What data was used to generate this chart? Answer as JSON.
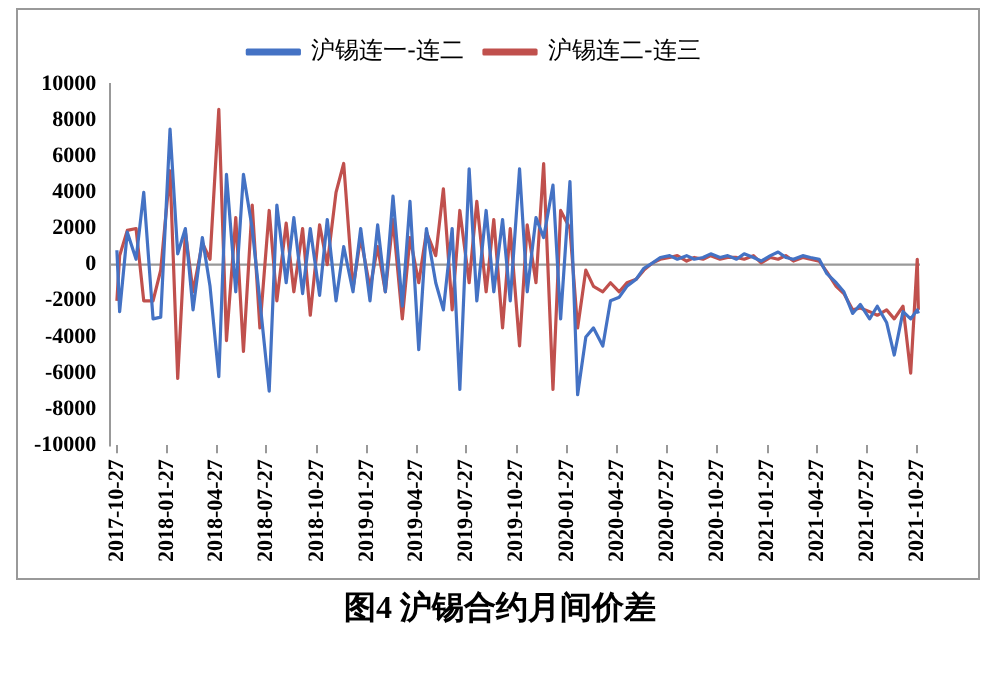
{
  "chart_data": {
    "type": "line",
    "title": "图4 沪锡合约月间价差",
    "x": [
      "2017-10-27",
      "2017-11-01",
      "2017-11-15",
      "2017-12-01",
      "2017-12-15",
      "2018-01-01",
      "2018-01-15",
      "2018-02-01",
      "2018-02-15",
      "2018-03-01",
      "2018-03-15",
      "2018-04-01",
      "2018-04-15",
      "2018-05-01",
      "2018-05-15",
      "2018-06-01",
      "2018-06-15",
      "2018-07-01",
      "2018-07-15",
      "2018-08-01",
      "2018-08-15",
      "2018-09-01",
      "2018-09-15",
      "2018-10-01",
      "2018-10-15",
      "2018-11-01",
      "2018-11-15",
      "2018-12-01",
      "2018-12-15",
      "2019-01-01",
      "2019-01-15",
      "2019-02-01",
      "2019-02-15",
      "2019-03-01",
      "2019-03-15",
      "2019-04-01",
      "2019-04-15",
      "2019-05-01",
      "2019-05-15",
      "2019-06-01",
      "2019-06-15",
      "2019-07-01",
      "2019-07-15",
      "2019-08-01",
      "2019-08-15",
      "2019-09-01",
      "2019-09-15",
      "2019-10-01",
      "2019-10-15",
      "2019-11-01",
      "2019-11-15",
      "2019-12-01",
      "2019-12-15",
      "2020-01-01",
      "2020-01-15",
      "2020-02-01",
      "2020-02-15",
      "2020-03-01",
      "2020-03-15",
      "2020-04-01",
      "2020-04-15",
      "2020-05-01",
      "2020-05-15",
      "2020-06-01",
      "2020-06-15",
      "2020-07-01",
      "2020-07-15",
      "2020-08-01",
      "2020-08-15",
      "2020-09-01",
      "2020-09-15",
      "2020-10-01",
      "2020-10-15",
      "2020-11-01",
      "2020-11-15",
      "2020-12-01",
      "2020-12-15",
      "2021-01-01",
      "2021-01-15",
      "2021-02-01",
      "2021-02-15",
      "2021-03-01",
      "2021-03-15",
      "2021-04-01",
      "2021-04-15",
      "2021-05-01",
      "2021-05-15",
      "2021-06-01",
      "2021-06-15",
      "2021-07-01",
      "2021-07-15",
      "2021-08-01",
      "2021-08-15",
      "2021-09-01",
      "2021-09-15",
      "2021-10-01",
      "2021-10-15",
      "2021-10-27",
      "2021-10-29"
    ],
    "series": [
      {
        "name": "沪锡连一-连二",
        "color": "#4472c4",
        "values": [
          800,
          -2600,
          1800,
          300,
          4000,
          -3000,
          -2900,
          7500,
          600,
          2000,
          -2500,
          1500,
          -1200,
          -6200,
          5000,
          -1500,
          5000,
          2000,
          -2000,
          -7000,
          3300,
          -1000,
          2600,
          -1600,
          2000,
          -1700,
          2500,
          -2000,
          1000,
          -1500,
          2000,
          -2000,
          2200,
          -1500,
          3800,
          -2300,
          3500,
          -4700,
          2000,
          -1000,
          -2500,
          2000,
          -6900,
          5300,
          -2000,
          3000,
          -1500,
          2500,
          -2000,
          5300,
          -1500,
          2600,
          1500,
          4400,
          -3000,
          4600,
          -7200,
          -4000,
          -3500,
          -4500,
          -2000,
          -1800,
          -1200,
          -800,
          -200,
          100,
          400,
          500,
          300,
          500,
          300,
          400,
          600,
          400,
          500,
          300,
          600,
          400,
          200,
          500,
          700,
          400,
          300,
          500,
          400,
          300,
          -500,
          -1000,
          -1500,
          -2700,
          -2200,
          -3000,
          -2300,
          -3200,
          -5000,
          -2600,
          -3000,
          -2500,
          -2700
        ]
      },
      {
        "name": "沪锡连二-连三",
        "color": "#c0504d",
        "values": [
          -2000,
          500,
          1900,
          2000,
          -2000,
          -2000,
          -300,
          5200,
          -6300,
          1800,
          -1500,
          1200,
          300,
          8600,
          -4200,
          2600,
          -4800,
          3300,
          -3500,
          3000,
          -2000,
          2300,
          -1500,
          2000,
          -2800,
          2200,
          0,
          4000,
          5600,
          -1300,
          1500,
          -1300,
          1000,
          -1500,
          2500,
          -3000,
          1500,
          -1000,
          1800,
          500,
          4200,
          -2500,
          3000,
          -1000,
          3500,
          -1500,
          2500,
          -3500,
          2000,
          -4500,
          2200,
          -1000,
          5600,
          -6900,
          3000,
          2000,
          -3500,
          -300,
          -1200,
          -1500,
          -1000,
          -1500,
          -1000,
          -800,
          -300,
          100,
          300,
          400,
          500,
          200,
          400,
          300,
          500,
          300,
          400,
          400,
          300,
          500,
          100,
          400,
          300,
          500,
          200,
          400,
          300,
          200,
          -400,
          -1200,
          -1600,
          -2500,
          -2400,
          -2600,
          -2800,
          -2500,
          -3000,
          -2300,
          -6000,
          300,
          -2500
        ]
      }
    ],
    "xlim": [
      "2017-10-15",
      "2021-11-01"
    ],
    "xticks": [
      "2017-10-27",
      "2018-01-27",
      "2018-04-27",
      "2018-07-27",
      "2018-10-27",
      "2019-01-27",
      "2019-04-27",
      "2019-07-27",
      "2019-10-27",
      "2020-01-27",
      "2020-04-27",
      "2020-07-27",
      "2020-10-27",
      "2021-01-27",
      "2021-04-27",
      "2021-07-27",
      "2021-10-27"
    ],
    "ylim": [
      -10000,
      10000
    ],
    "yticks": [
      -10000,
      -8000,
      -6000,
      -4000,
      -2000,
      0,
      2000,
      4000,
      6000,
      8000,
      10000
    ],
    "ref_lines": [
      {
        "axis": "y",
        "value": 0,
        "color": "#999999"
      }
    ],
    "legend": "top",
    "grid": false,
    "marker": "none",
    "line_style": "solid"
  }
}
